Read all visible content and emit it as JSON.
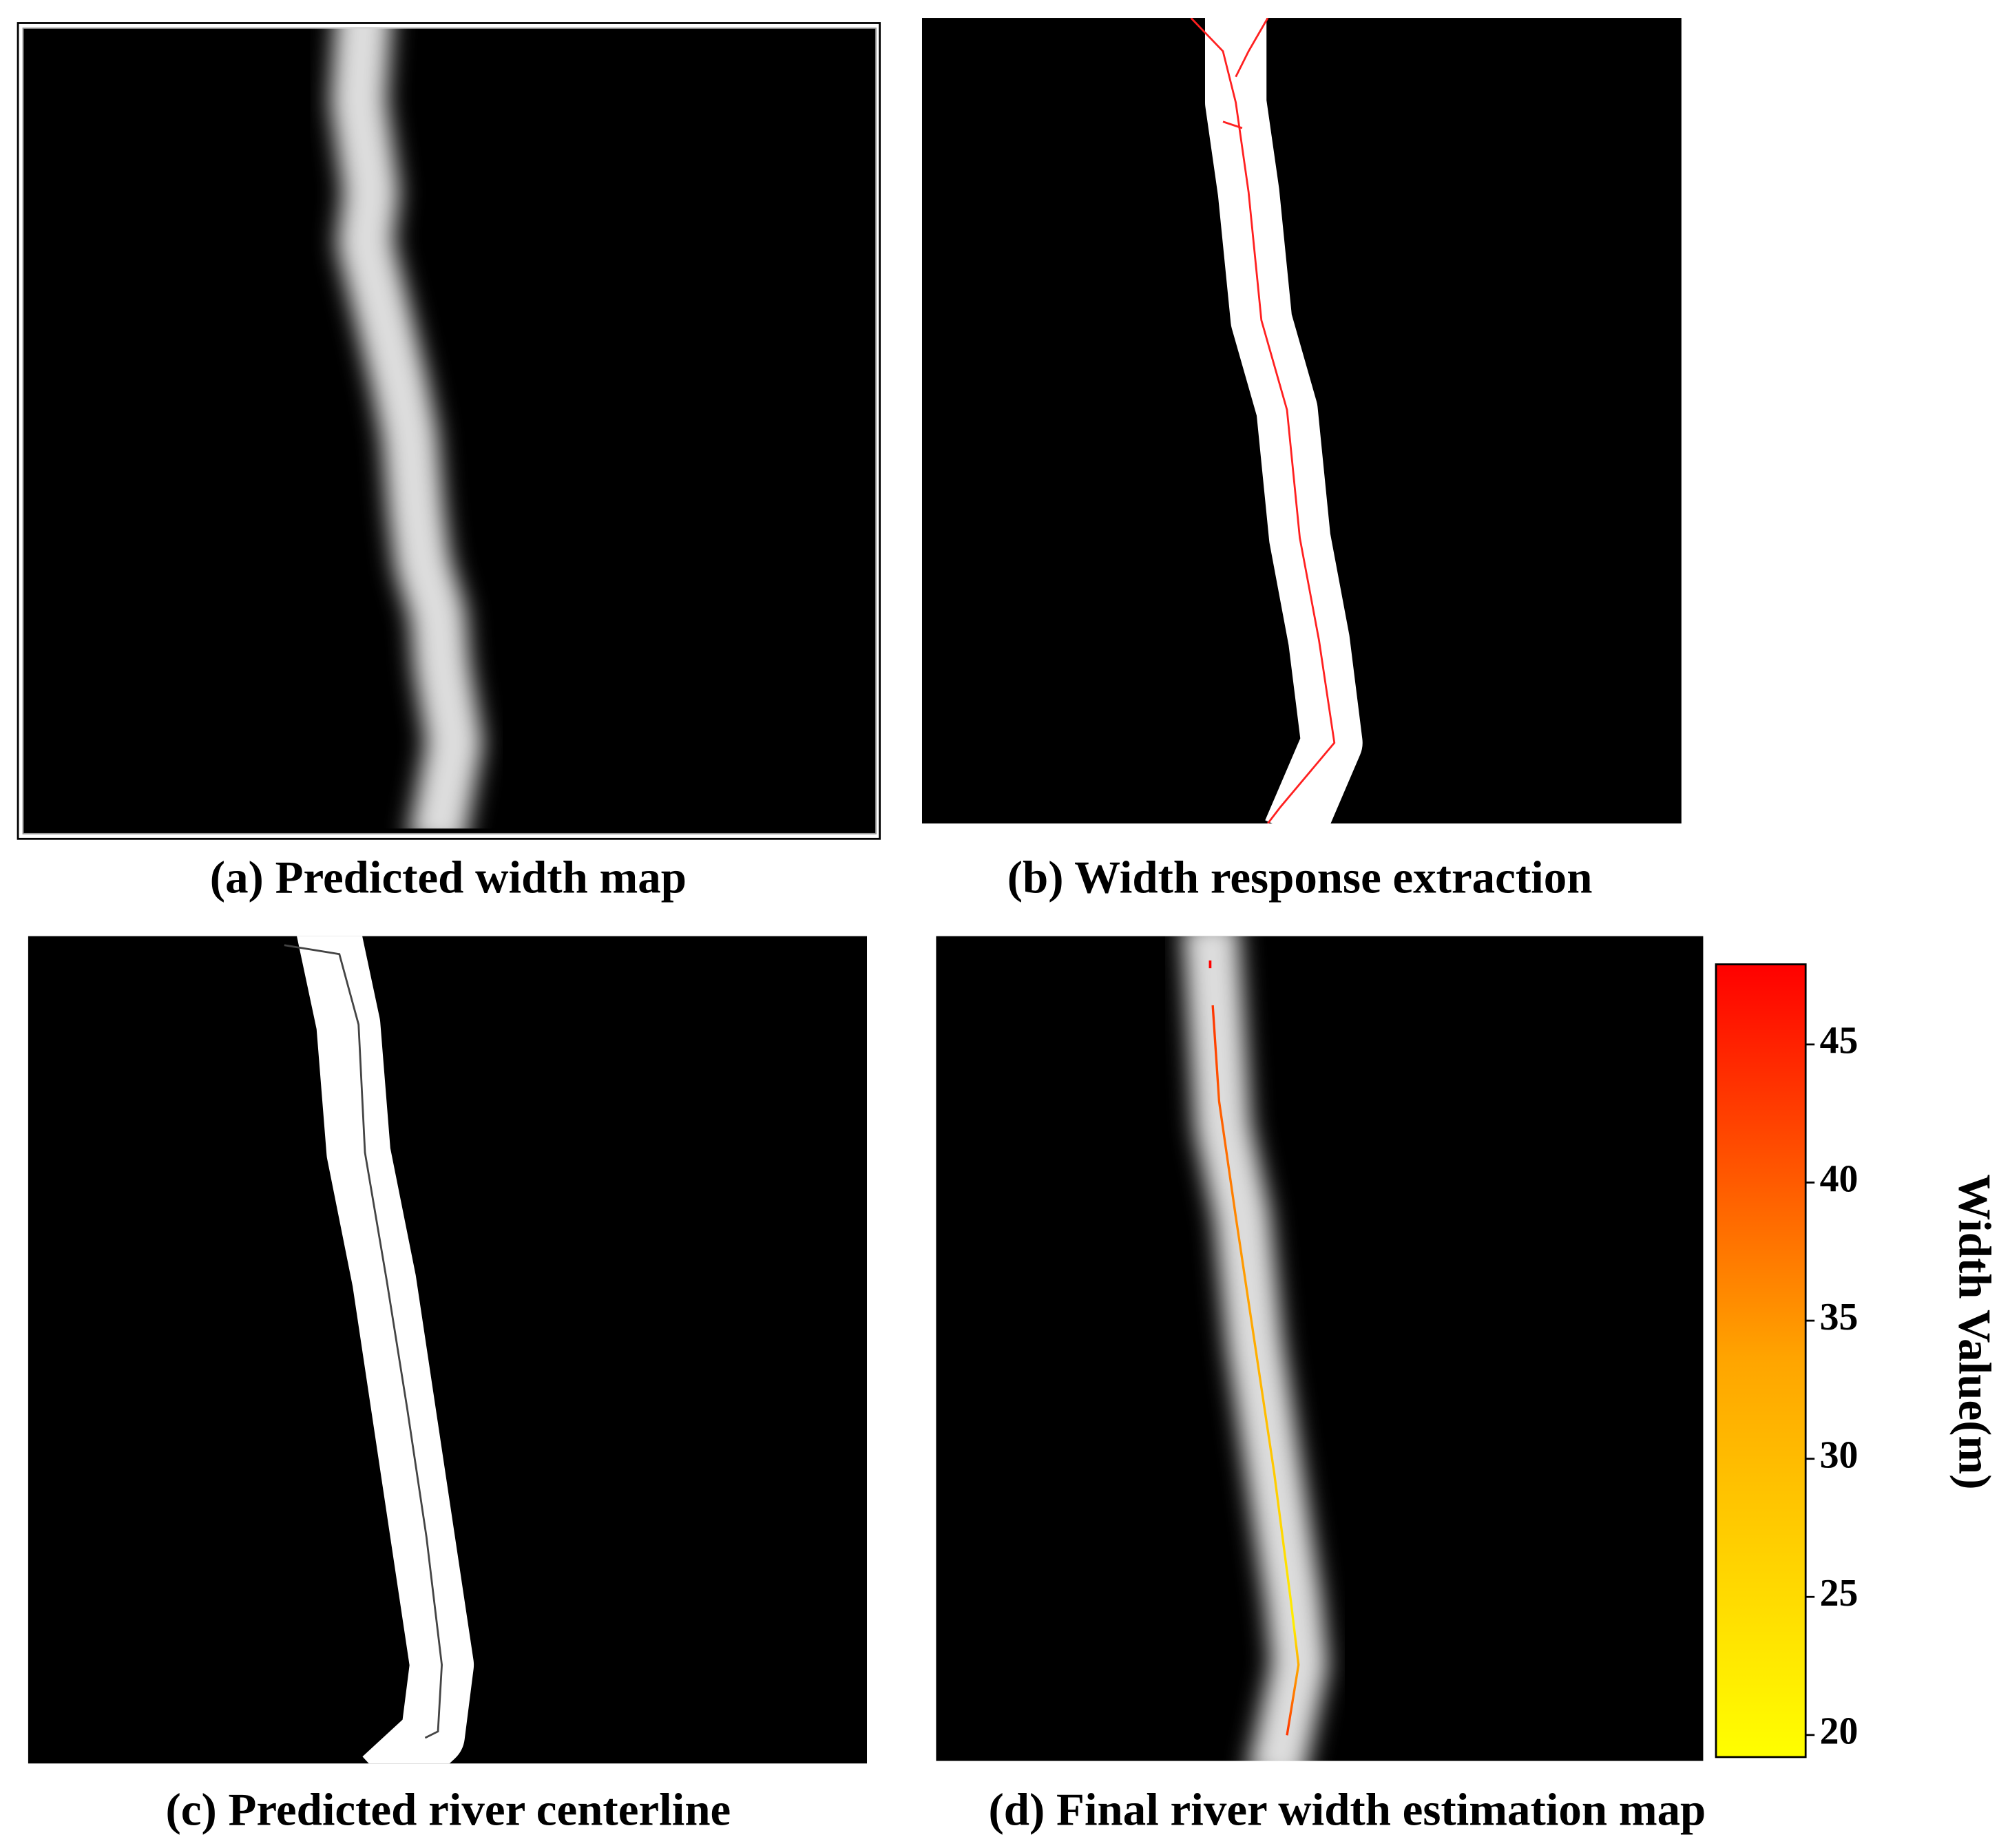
{
  "panels": [
    {
      "caption": "(a) Predicted width map"
    },
    {
      "caption": "(b) Width response extraction"
    },
    {
      "caption": "(c) Predicted river centerline"
    },
    {
      "caption": "(d) Final river width estimation map"
    }
  ],
  "colorbar": {
    "label": "Width Value(m)",
    "lim": [
      19.2,
      47.9
    ],
    "ticks": [
      20,
      25,
      30,
      35,
      40,
      45
    ]
  }
}
